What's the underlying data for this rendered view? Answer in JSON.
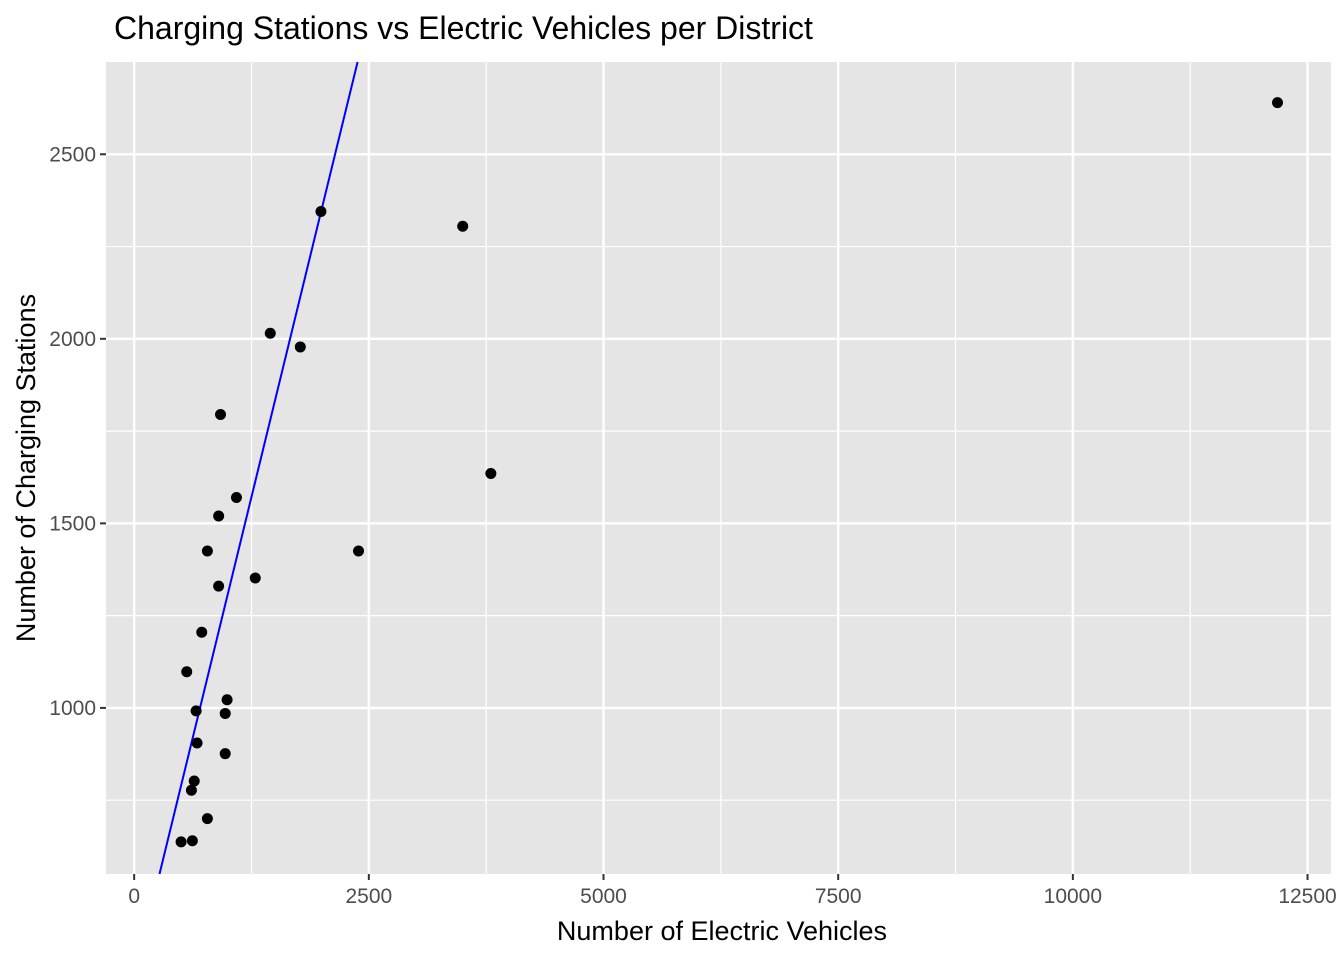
{
  "chart_data": {
    "type": "scatter",
    "title": "Charging Stations vs Electric Vehicles per District",
    "xlabel": "Number of Electric Vehicles",
    "ylabel": "Number of Charging Stations",
    "xlim": [
      -300,
      12750
    ],
    "ylim": [
      550,
      2750
    ],
    "x_ticks": [
      0,
      2500,
      5000,
      7500,
      10000,
      12500
    ],
    "x_tick_labels": [
      "0",
      "2500",
      "5000",
      "7500",
      "10000",
      "12500"
    ],
    "y_ticks": [
      1000,
      1500,
      2000,
      2500
    ],
    "y_tick_labels": [
      "1000",
      "1500",
      "2000",
      "2500"
    ],
    "x_minor_ticks": [
      1250,
      3750,
      6250,
      8750,
      11250
    ],
    "y_minor_ticks": [
      750,
      1250,
      1750,
      2250
    ],
    "grid": true,
    "colors": {
      "panel_background": "#e5e5e5",
      "grid": "#ffffff",
      "points": "#000000",
      "fit_line": "#0000ff"
    },
    "points": [
      {
        "x": 12180,
        "y": 2640
      },
      {
        "x": 3500,
        "y": 2305
      },
      {
        "x": 3800,
        "y": 1635
      },
      {
        "x": 2390,
        "y": 1425
      },
      {
        "x": 1990,
        "y": 2345
      },
      {
        "x": 1450,
        "y": 2015
      },
      {
        "x": 1770,
        "y": 1978
      },
      {
        "x": 920,
        "y": 1795
      },
      {
        "x": 1090,
        "y": 1570
      },
      {
        "x": 900,
        "y": 1520
      },
      {
        "x": 780,
        "y": 1425
      },
      {
        "x": 1290,
        "y": 1352
      },
      {
        "x": 900,
        "y": 1330
      },
      {
        "x": 720,
        "y": 1205
      },
      {
        "x": 560,
        "y": 1098
      },
      {
        "x": 990,
        "y": 1022
      },
      {
        "x": 660,
        "y": 992
      },
      {
        "x": 970,
        "y": 985
      },
      {
        "x": 670,
        "y": 905
      },
      {
        "x": 970,
        "y": 876
      },
      {
        "x": 640,
        "y": 802
      },
      {
        "x": 610,
        "y": 777
      },
      {
        "x": 780,
        "y": 700
      },
      {
        "x": 500,
        "y": 637
      },
      {
        "x": 620,
        "y": 640
      }
    ],
    "fit_line": {
      "x": [
        270,
        2380
      ],
      "y": [
        550,
        2750
      ]
    }
  }
}
